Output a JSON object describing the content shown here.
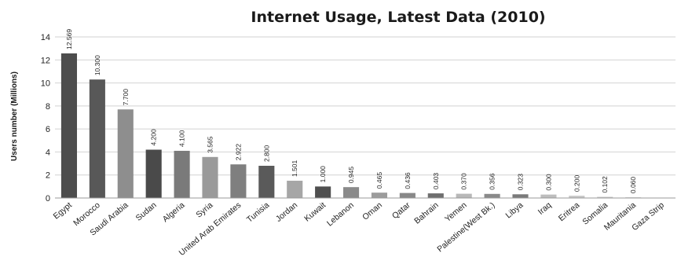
{
  "chart_data": {
    "type": "bar",
    "title": "Internet Usage, Latest Data (2010)",
    "xlabel": "",
    "ylabel": "Users number (Millions)",
    "ylim": [
      0,
      14
    ],
    "yticks": [
      0,
      2,
      4,
      6,
      8,
      10,
      12,
      14
    ],
    "grid": true,
    "categories": [
      "Egypt",
      "Morocco",
      "Saudi Arabia",
      "Sudan",
      "Algeria",
      "Syria",
      "United Arab Emirates",
      "Tunisia",
      "Jordan",
      "Kuwait",
      "Lebanon",
      "Oman",
      "Qatar",
      "Bahrain",
      "Yemen",
      "Palestine(West Bk.)",
      "Libya",
      "Iraq",
      "Eritrea",
      "Somalia",
      "Mauritania",
      "Gaza Strip"
    ],
    "values": [
      12.569,
      10.3,
      7.7,
      4.2,
      4.1,
      3.565,
      2.922,
      2.8,
      1.501,
      1.0,
      0.945,
      0.465,
      0.436,
      0.403,
      0.37,
      0.356,
      0.323,
      0.3,
      0.2,
      0.102,
      0.06,
      null
    ],
    "data_labels": [
      "12.569",
      "10.300",
      "7.700",
      "4.200",
      "4.100",
      "3.565",
      "2.922",
      "2.800",
      "1.501",
      "1.000",
      "0.945",
      "0.465",
      "0.436",
      "0.403",
      "0.370",
      "0.356",
      "0.323",
      "0.300",
      "0.200",
      "0.102",
      "0.060",
      ""
    ],
    "bar_colors": [
      "#4d4d4d",
      "#585858",
      "#8e8e8e",
      "#4a4a4a",
      "#7a7a7a",
      "#9a9a9a",
      "#7f7f7f",
      "#5a5a5a",
      "#a6a6a6",
      "#4f4f4f",
      "#8a8a8a",
      "#9c9c9c",
      "#888888",
      "#6e6e6e",
      "#b8b8b8",
      "#8a8a8a",
      "#7a7a7a",
      "#bdbdbd",
      "#c8c8c8",
      "#c8c8c8",
      "#cccccc",
      "#cccccc"
    ]
  }
}
